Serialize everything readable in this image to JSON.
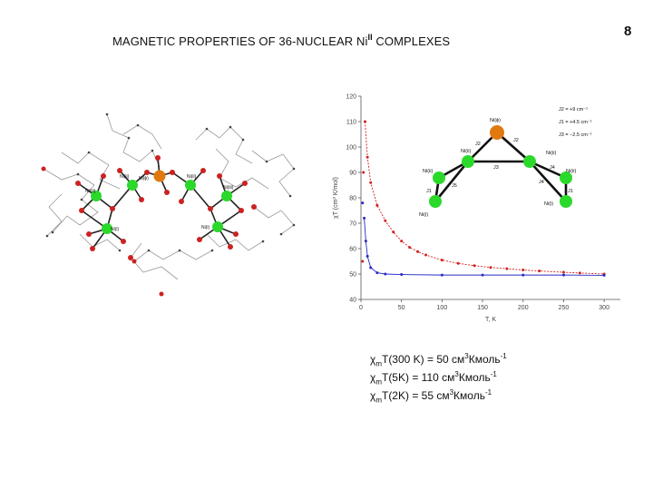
{
  "slide": {
    "title": "MAGNETIC PROPERTIES OF 36-NUCLEAR Ni",
    "title_sup": "II",
    "title_tail": " COMPLEXES",
    "page_number": "8"
  },
  "molecule": {
    "atom_labels": [
      "Ni(iii)",
      "Ni(ii)",
      "Ni(ϕ)",
      "Ni(ii)",
      "Ni(iii)",
      "Ni(i)",
      "Ni(i)",
      "Ni(iv)",
      "Ni(iv)"
    ],
    "colors": {
      "nickel": "#2bd92b",
      "center": "#e07a10",
      "oxygen": "#cc2222",
      "bond": "#222222",
      "ligand": "#9a9a9a"
    }
  },
  "inset": {
    "node_labels": {
      "top": "Ni(ϕ)",
      "left": "Ni(ii)",
      "right": "Ni(ii)",
      "far_left": "Ni(ii)",
      "far_right": "Ni(ii)",
      "bottom_left": "Ni(i)",
      "bottom_right": "Ni(i)"
    },
    "coupling_labels": [
      "J2",
      "J2",
      "J3",
      "J4",
      "J4",
      "J5",
      "J5",
      "J1",
      "J1"
    ],
    "legend": [
      "J2 = +9 cm⁻¹",
      "J1 = +4.5 cm⁻¹",
      "J3 = −2.5 cm⁻¹"
    ]
  },
  "chart_data": {
    "type": "scatter",
    "xlabel": "T, K",
    "ylabel": "χT (cm³ K/mol)",
    "xlim": [
      0,
      320
    ],
    "ylim": [
      40,
      120
    ],
    "x_ticks": [
      0,
      50,
      100,
      150,
      200,
      250,
      300
    ],
    "y_ticks": [
      40,
      50,
      60,
      70,
      80,
      90,
      100,
      110,
      120
    ],
    "grid": false,
    "series": [
      {
        "color": "#d42020",
        "points": [
          [
            2,
            55
          ],
          [
            3,
            90
          ],
          [
            5,
            110
          ],
          [
            8,
            96
          ],
          [
            12,
            86
          ],
          [
            20,
            77
          ],
          [
            30,
            71
          ],
          [
            40,
            66.5
          ],
          [
            50,
            63
          ],
          [
            60,
            60.5
          ],
          [
            70,
            58.8
          ],
          [
            80,
            57.5
          ],
          [
            100,
            55.5
          ],
          [
            120,
            54.2
          ],
          [
            140,
            53.3
          ],
          [
            160,
            52.6
          ],
          [
            180,
            52.1
          ],
          [
            200,
            51.6
          ],
          [
            220,
            51.2
          ],
          [
            250,
            50.7
          ],
          [
            270,
            50.4
          ],
          [
            300,
            50
          ]
        ],
        "fit": true
      },
      {
        "color": "#2828c8",
        "points": [
          [
            2,
            78
          ],
          [
            4,
            72
          ],
          [
            6,
            63
          ],
          [
            8,
            57
          ],
          [
            12,
            52.5
          ],
          [
            20,
            50.5
          ],
          [
            30,
            50
          ],
          [
            50,
            49.8
          ],
          [
            100,
            49.6
          ],
          [
            150,
            49.6
          ],
          [
            200,
            49.6
          ],
          [
            250,
            49.6
          ],
          [
            300,
            49.5
          ]
        ],
        "fit": true
      }
    ]
  },
  "equations": [
    {
      "chi": "χ",
      "sub": "m",
      "pre": "T(300 K) = 50 см",
      "sup1": "3",
      "mid": "Кмоль",
      "sup2": "-1"
    },
    {
      "chi": "χ",
      "sub": "m",
      "pre": "T(5K) = 110 см",
      "sup1": "3",
      "mid": "Кмоль",
      "sup2": "-1"
    },
    {
      "chi": "χ",
      "sub": "m",
      "pre": "T(2K) = 55 см",
      "sup1": "3",
      "mid": "Кмоль",
      "sup2": "-1"
    }
  ]
}
